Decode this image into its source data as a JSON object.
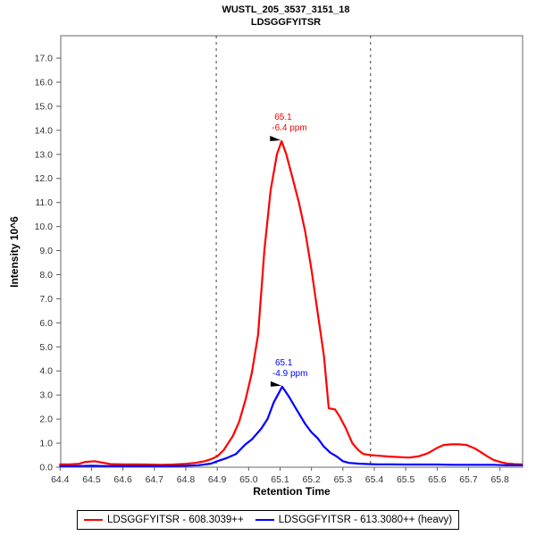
{
  "title": {
    "line1": "WUSTL_205_3537_3151_18",
    "line2": "LDSGGFYITSR"
  },
  "axes": {
    "x": {
      "label": "Retention Time",
      "tick_labels": [
        "64.4",
        "64.5",
        "64.6",
        "64.7",
        "64.8",
        "64.9",
        "65.0",
        "65.1",
        "65.2",
        "65.3",
        "65.4",
        "65.5",
        "65.6",
        "65.7",
        "65.8"
      ],
      "tick_values": [
        64.4,
        64.5,
        64.6,
        64.7,
        64.8,
        64.9,
        65.0,
        65.1,
        65.2,
        65.3,
        65.4,
        65.5,
        65.6,
        65.7,
        65.8
      ]
    },
    "y": {
      "label": "Intensity 10^6",
      "tick_labels": [
        "0.0",
        "1.0",
        "2.0",
        "3.0",
        "4.0",
        "5.0",
        "6.0",
        "7.0",
        "8.0",
        "9.0",
        "10.0",
        "11.0",
        "12.0",
        "13.0",
        "14.0",
        "15.0",
        "16.0",
        "17.0"
      ],
      "tick_values": [
        0,
        1,
        2,
        3,
        4,
        5,
        6,
        7,
        8,
        9,
        10,
        11,
        12,
        13,
        14,
        15,
        16,
        17
      ]
    }
  },
  "chart_data": {
    "type": "line",
    "title": "WUSTL_205_3537_3151_18 — LDSGGFYITSR",
    "xlabel": "Retention Time",
    "ylabel": "Intensity 10^6",
    "xlim": [
      64.402,
      65.872
    ],
    "ylim": [
      0,
      17.93
    ],
    "grid": false,
    "legend_position": "bottom",
    "peak_boundaries": [
      64.897,
      65.388
    ],
    "series": [
      {
        "name": "LDSGGFYITSR - 608.3039++",
        "color": "#FF0000",
        "x": [
          64.4,
          64.43,
          64.46,
          64.48,
          64.51,
          64.53,
          64.56,
          64.6,
          64.64,
          64.68,
          64.72,
          64.76,
          64.8,
          64.83,
          64.86,
          64.88,
          64.9,
          64.92,
          64.95,
          64.97,
          64.99,
          65.01,
          65.03,
          65.05,
          65.07,
          65.09,
          65.105,
          65.12,
          65.14,
          65.16,
          65.18,
          65.2,
          65.22,
          65.24,
          65.255,
          65.275,
          65.29,
          65.31,
          65.33,
          65.35,
          65.365,
          65.39,
          65.42,
          65.45,
          65.48,
          65.51,
          65.54,
          65.57,
          65.6,
          65.62,
          65.645,
          65.67,
          65.695,
          65.72,
          65.74,
          65.76,
          65.78,
          65.8,
          65.82,
          65.845,
          65.87
        ],
        "y": [
          0.12,
          0.12,
          0.14,
          0.22,
          0.25,
          0.2,
          0.13,
          0.12,
          0.12,
          0.11,
          0.1,
          0.11,
          0.14,
          0.18,
          0.25,
          0.33,
          0.45,
          0.7,
          1.3,
          1.9,
          2.8,
          3.9,
          5.5,
          9.0,
          11.5,
          13.0,
          13.55,
          13.0,
          12.0,
          11.0,
          9.8,
          8.2,
          6.4,
          4.6,
          2.45,
          2.4,
          2.1,
          1.6,
          1.0,
          0.7,
          0.55,
          0.5,
          0.47,
          0.44,
          0.42,
          0.4,
          0.45,
          0.58,
          0.8,
          0.92,
          0.95,
          0.95,
          0.92,
          0.78,
          0.62,
          0.45,
          0.3,
          0.22,
          0.16,
          0.13,
          0.12
        ]
      },
      {
        "name": "LDSGGFYITSR - 613.3080++ (heavy)",
        "color": "#0000FF",
        "x": [
          64.4,
          64.45,
          64.5,
          64.55,
          64.6,
          64.65,
          64.7,
          64.75,
          64.8,
          64.84,
          64.88,
          64.9,
          64.93,
          64.96,
          64.99,
          65.01,
          65.04,
          65.06,
          65.08,
          65.107,
          65.13,
          65.15,
          65.18,
          65.2,
          65.22,
          65.24,
          65.26,
          65.28,
          65.3,
          65.32,
          65.35,
          65.38,
          65.41,
          65.45,
          65.5,
          65.55,
          65.6,
          65.65,
          65.7,
          65.74,
          65.78,
          65.82,
          65.87
        ],
        "y": [
          0.05,
          0.05,
          0.06,
          0.05,
          0.05,
          0.05,
          0.05,
          0.05,
          0.06,
          0.08,
          0.15,
          0.25,
          0.38,
          0.55,
          0.95,
          1.15,
          1.6,
          2.0,
          2.7,
          3.35,
          2.9,
          2.45,
          1.8,
          1.45,
          1.2,
          0.85,
          0.6,
          0.45,
          0.25,
          0.18,
          0.15,
          0.13,
          0.12,
          0.12,
          0.11,
          0.11,
          0.11,
          0.1,
          0.1,
          0.1,
          0.1,
          0.08,
          0.08
        ]
      }
    ],
    "annotations": [
      {
        "x": 65.105,
        "y": 13.55,
        "lines": [
          "65.1",
          "-6.4 ppm"
        ],
        "color": "#FF0000"
      },
      {
        "x": 65.107,
        "y": 3.35,
        "lines": [
          "65.1",
          "-4.9 ppm"
        ],
        "color": "#0000FF"
      }
    ]
  },
  "legend": {
    "items": [
      {
        "label": "LDSGGFYITSR - 608.3039++",
        "color": "#FF0000"
      },
      {
        "label": "LDSGGFYITSR - 613.3080++ (heavy)",
        "color": "#0000FF"
      }
    ]
  },
  "colors": {
    "plot_border": "#808080",
    "tick_mark": "#606060",
    "tick_label": "#333333",
    "boundary_line": "#404040",
    "annotation_arrow": "#000000",
    "background": "#FFFFFF"
  }
}
